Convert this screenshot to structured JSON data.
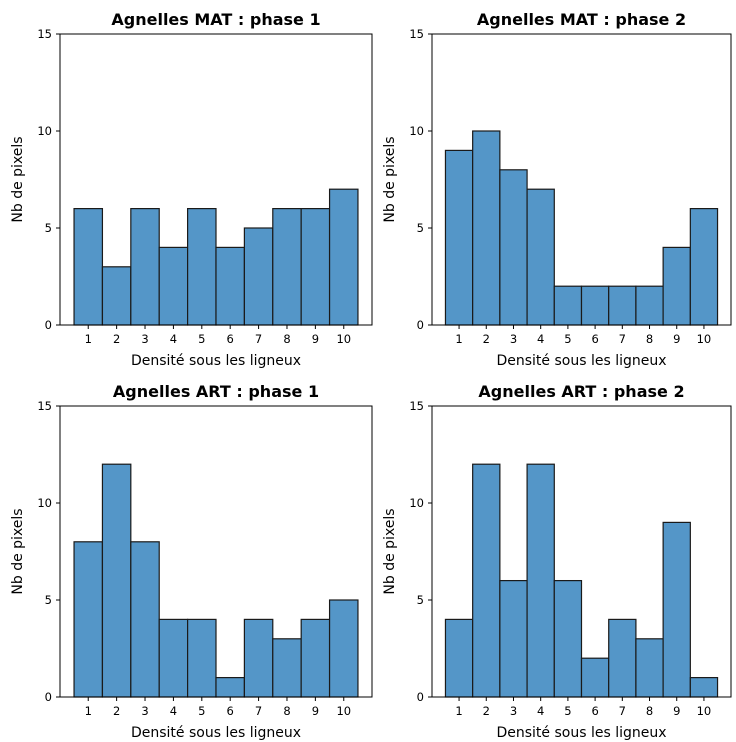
{
  "figure": {
    "bar_color": "#5496c8",
    "edge_color": "#1a1a1a"
  },
  "chart_data": [
    {
      "type": "bar",
      "title": "Agnelles MAT : phase 1",
      "xlabel": "Densité sous les ligneux",
      "ylabel": "Nb de pixels",
      "categories": [
        "1",
        "2",
        "3",
        "4",
        "5",
        "6",
        "7",
        "8",
        "9",
        "10"
      ],
      "values": [
        6,
        3,
        6,
        4,
        6,
        4,
        5,
        6,
        6,
        7
      ],
      "ylim": [
        0,
        15
      ],
      "yticks": [
        "0",
        "5",
        "10",
        "15"
      ],
      "grid": false
    },
    {
      "type": "bar",
      "title": "Agnelles MAT : phase 2",
      "xlabel": "Densité sous les ligneux",
      "ylabel": "Nb de pixels",
      "categories": [
        "1",
        "2",
        "3",
        "4",
        "5",
        "6",
        "7",
        "8",
        "9",
        "10"
      ],
      "values": [
        9,
        10,
        8,
        7,
        2,
        2,
        2,
        2,
        4,
        6
      ],
      "ylim": [
        0,
        15
      ],
      "yticks": [
        "0",
        "5",
        "10",
        "15"
      ],
      "grid": false
    },
    {
      "type": "bar",
      "title": "Agnelles ART : phase 1",
      "xlabel": "Densité sous les ligneux",
      "ylabel": "Nb de pixels",
      "categories": [
        "1",
        "2",
        "3",
        "4",
        "5",
        "6",
        "7",
        "8",
        "9",
        "10"
      ],
      "values": [
        8,
        12,
        8,
        4,
        4,
        1,
        4,
        3,
        4,
        5
      ],
      "ylim": [
        0,
        15
      ],
      "yticks": [
        "0",
        "5",
        "10",
        "15"
      ],
      "grid": false
    },
    {
      "type": "bar",
      "title": "Agnelles ART : phase 2",
      "xlabel": "Densité sous les ligneux",
      "ylabel": "Nb de pixels",
      "categories": [
        "1",
        "2",
        "3",
        "4",
        "5",
        "6",
        "7",
        "8",
        "9",
        "10"
      ],
      "values": [
        4,
        12,
        6,
        12,
        6,
        2,
        4,
        3,
        9,
        1
      ],
      "ylim": [
        0,
        15
      ],
      "yticks": [
        "0",
        "5",
        "10",
        "15"
      ],
      "grid": false
    }
  ]
}
